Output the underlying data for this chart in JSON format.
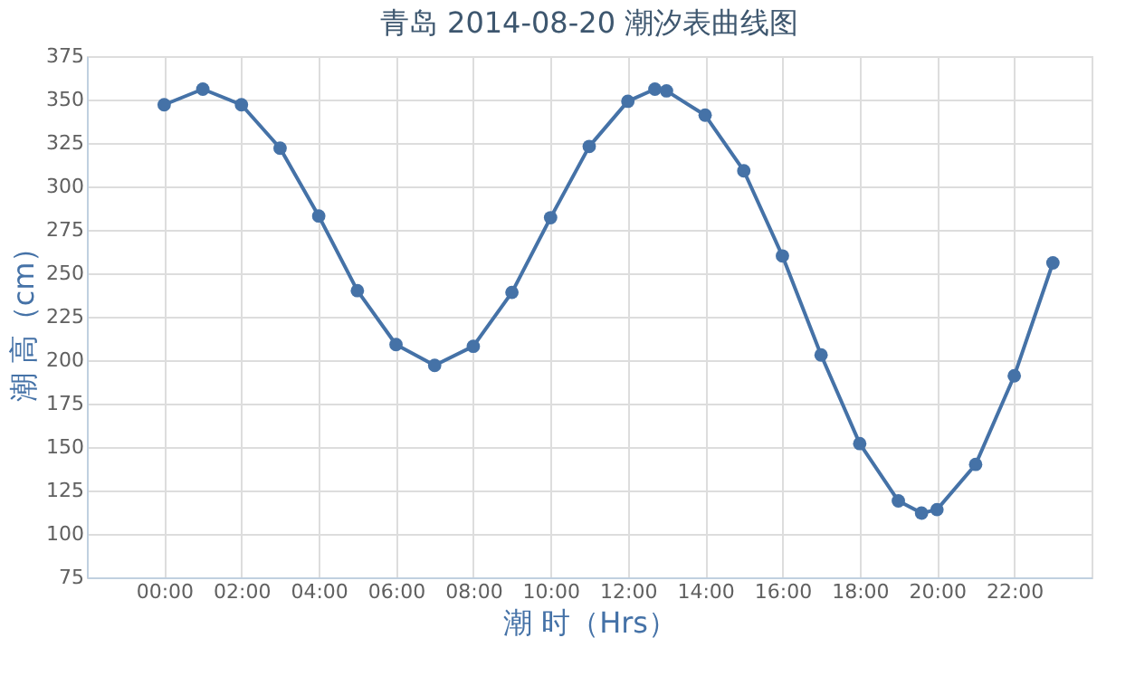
{
  "chart_data": {
    "type": "line",
    "title": "青岛 2014-08-20 潮汐表曲线图",
    "xlabel": "潮 时（Hrs）",
    "ylabel": "潮 高（cm）",
    "x": [
      0,
      1,
      2,
      3,
      4,
      5,
      6,
      7,
      8,
      9,
      10,
      11,
      12,
      12.7,
      13,
      14,
      15,
      16,
      17,
      18,
      19,
      19.6,
      20,
      21,
      22,
      23
    ],
    "series": [
      {
        "color": "#4572a7",
        "values": [
          347,
          356,
          347,
          322,
          283,
          240,
          209,
          197,
          208,
          239,
          282,
          323,
          349,
          356,
          355,
          341,
          309,
          260,
          203,
          152,
          119,
          112,
          114,
          140,
          191,
          256
        ]
      }
    ],
    "xlim": [
      -2,
      24
    ],
    "xticks": [
      {
        "value": 0,
        "label": "00:00"
      },
      {
        "value": 2,
        "label": "02:00"
      },
      {
        "value": 4,
        "label": "04:00"
      },
      {
        "value": 6,
        "label": "06:00"
      },
      {
        "value": 8,
        "label": "08:00"
      },
      {
        "value": 10,
        "label": "10:00"
      },
      {
        "value": 12,
        "label": "12:00"
      },
      {
        "value": 14,
        "label": "14:00"
      },
      {
        "value": 16,
        "label": "16:00"
      },
      {
        "value": 18,
        "label": "18:00"
      },
      {
        "value": 20,
        "label": "20:00"
      },
      {
        "value": 22,
        "label": "22:00"
      }
    ],
    "ylim": [
      75,
      375
    ],
    "yticks": [
      75,
      100,
      125,
      150,
      175,
      200,
      225,
      250,
      275,
      300,
      325,
      350,
      375
    ],
    "grid": true,
    "marker": "circle",
    "line_style": "solid"
  }
}
